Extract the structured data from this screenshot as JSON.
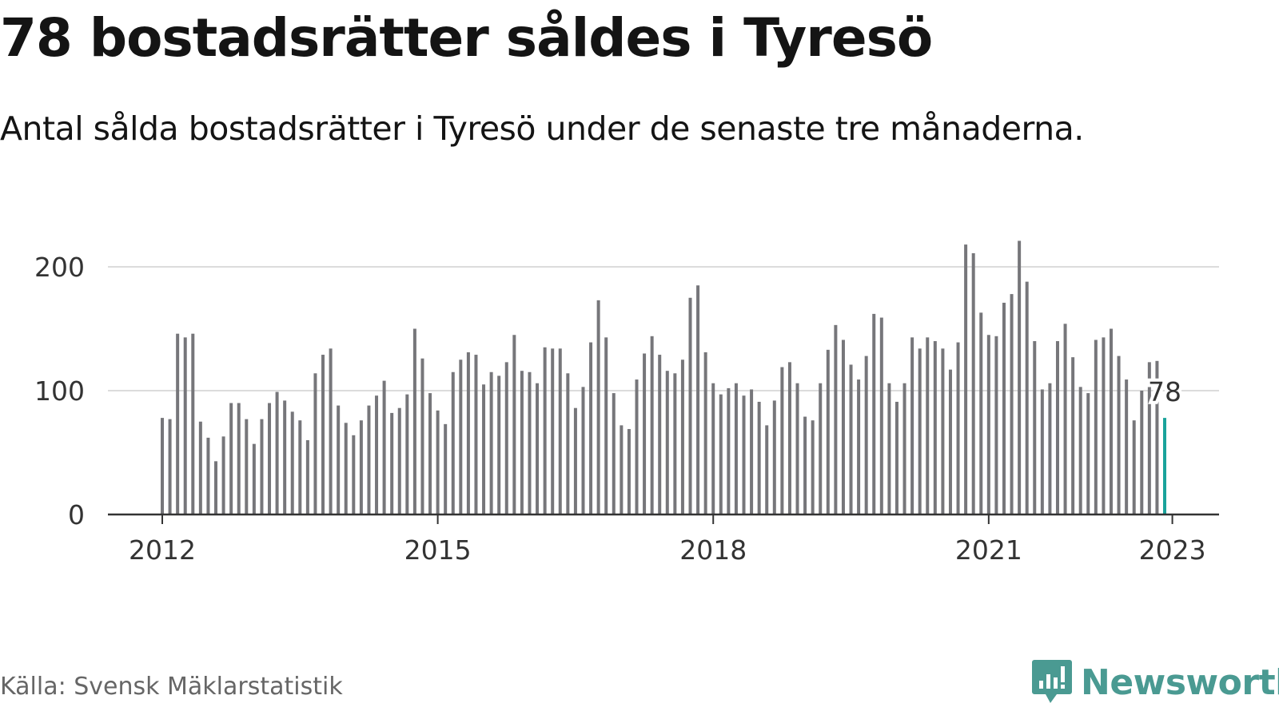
{
  "header": {
    "title": "78 bostadsrätter såldes i Tyresö",
    "subtitle": "Antal sålda bostadsrätter i Tyresö under de senaste tre månaderna."
  },
  "footer": {
    "source": "Källa: Svensk Mäklarstatistik",
    "brand": "Newsworthy"
  },
  "colors": {
    "bar": "#76767a",
    "highlight": "#1aa39b",
    "grid": "#dcdcdc",
    "axis": "#333333",
    "brand": "#4a9a92"
  },
  "chart_data": {
    "type": "bar",
    "title": "78 bostadsrätter såldes i Tyresö",
    "subtitle": "Antal sålda bostadsrätter i Tyresö under de senaste tre månaderna.",
    "x_start": "2012-01",
    "x_end": "2023-01",
    "x_ticks": [
      "2012",
      "2015",
      "2018",
      "2021",
      "2023"
    ],
    "y_ticks": [
      0,
      100,
      200
    ],
    "ylim": [
      0,
      230
    ],
    "grid": true,
    "values": [
      78,
      77,
      146,
      143,
      146,
      75,
      62,
      43,
      63,
      90,
      90,
      77,
      57,
      77,
      90,
      99,
      92,
      83,
      76,
      60,
      114,
      129,
      134,
      88,
      74,
      64,
      76,
      88,
      96,
      108,
      82,
      86,
      97,
      150,
      126,
      98,
      84,
      73,
      115,
      125,
      131,
      129,
      105,
      115,
      112,
      123,
      145,
      116,
      115,
      106,
      135,
      134,
      134,
      114,
      86,
      103,
      139,
      173,
      143,
      98,
      72,
      69,
      109,
      130,
      144,
      129,
      116,
      114,
      125,
      175,
      185,
      131,
      106,
      97,
      102,
      106,
      96,
      101,
      91,
      72,
      92,
      119,
      123,
      106,
      79,
      76,
      106,
      133,
      153,
      141,
      121,
      109,
      128,
      162,
      159,
      106,
      91,
      106,
      143,
      134,
      143,
      140,
      134,
      117,
      139,
      218,
      211,
      163,
      145,
      144,
      171,
      178,
      221,
      188,
      140,
      101,
      106,
      140,
      154,
      127,
      103,
      98,
      141,
      143,
      150,
      128,
      109,
      76,
      100,
      123,
      124,
      78
    ],
    "highlight_label": "78"
  }
}
